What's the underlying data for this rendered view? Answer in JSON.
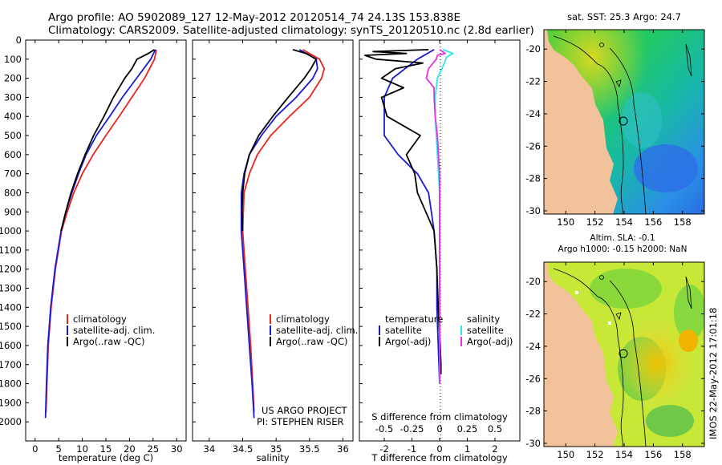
{
  "header": {
    "title_line1": "Argo profile: AO 5902089_127 12-May-2012 20120514_74 24.13S 153.838E",
    "title_line2": "Climatology: CARS2009. Satellite-adjusted climatology: synTS_20120510.nc (2.8d earlier)"
  },
  "footer_vertical": "IMOS 22-May-2012 17:01:18",
  "colors": {
    "red": "#e8261c",
    "blue": "#1a1ad6",
    "black": "#000000",
    "cyan": "#2ee6e6",
    "magenta": "#e62ee6",
    "land": "#f2c39a"
  },
  "chart_data": [
    {
      "id": "temperature",
      "type": "line",
      "xlabel": "temperature (deg C)",
      "ylabel": "",
      "xlim": [
        -2,
        32
      ],
      "ylim": [
        2100,
        0
      ],
      "xticks": [
        0,
        5,
        10,
        15,
        20,
        25,
        30
      ],
      "yticks": [
        0,
        100,
        200,
        300,
        400,
        500,
        600,
        700,
        800,
        900,
        1000,
        1100,
        1200,
        1300,
        1400,
        1500,
        1600,
        1700,
        1800,
        1900,
        2000
      ],
      "legend": [
        "climatology",
        "satellite-adj. clim.",
        "Argo(..raw -QC)"
      ],
      "series": [
        {
          "name": "climatology",
          "color": "red",
          "depth": [
            50,
            100,
            200,
            300,
            400,
            500,
            600,
            700,
            800,
            900,
            1000,
            1200,
            1400,
            1600,
            1800,
            1950
          ],
          "values": [
            25.7,
            25.3,
            23.2,
            20.5,
            17.8,
            15.0,
            12.3,
            10.0,
            8.2,
            6.8,
            5.6,
            4.3,
            3.4,
            2.8,
            2.5,
            2.3
          ]
        },
        {
          "name": "satellite-adj. clim.",
          "color": "blue",
          "depth": [
            50,
            100,
            200,
            300,
            400,
            500,
            600,
            700,
            800,
            900,
            1000,
            1200,
            1400,
            1600,
            1800,
            1980
          ],
          "values": [
            25.5,
            24.5,
            21.5,
            18.5,
            15.8,
            13.0,
            10.8,
            9.2,
            7.8,
            6.5,
            5.5,
            4.2,
            3.3,
            2.7,
            2.4,
            2.2
          ]
        },
        {
          "name": "Argo(..raw -QC)",
          "color": "black",
          "depth": [
            50,
            70,
            100,
            150,
            200,
            300,
            400,
            500,
            600,
            700,
            800,
            900,
            1000
          ],
          "values": [
            25.3,
            24.0,
            21.6,
            20.5,
            19.0,
            16.6,
            14.6,
            12.4,
            10.6,
            9.0,
            7.6,
            6.5,
            5.5
          ]
        }
      ]
    },
    {
      "id": "salinity",
      "type": "line",
      "xlabel": "salinity",
      "ylabel": "",
      "xlim": [
        33.75,
        36.15
      ],
      "ylim": [
        2100,
        0
      ],
      "xticks": [
        34,
        34.5,
        35,
        35.5,
        36
      ],
      "legend": [
        "climatology",
        "satellite-adj. clim.",
        "Argo(..raw -QC)"
      ],
      "annotation": [
        "US ARGO PROJECT",
        "PI: STEPHEN RISER"
      ],
      "series": [
        {
          "name": "climatology",
          "color": "red",
          "depth": [
            50,
            100,
            150,
            200,
            300,
            400,
            500,
            600,
            700,
            800,
            1000,
            1200,
            1400,
            1600,
            1800,
            1950
          ],
          "values": [
            35.4,
            35.65,
            35.72,
            35.68,
            35.5,
            35.2,
            34.92,
            34.72,
            34.6,
            34.52,
            34.5,
            34.54,
            34.58,
            34.62,
            34.65,
            34.67
          ]
        },
        {
          "name": "satellite-adj. clim.",
          "color": "blue",
          "depth": [
            50,
            100,
            150,
            200,
            300,
            400,
            500,
            600,
            700,
            800,
            1000,
            1200,
            1400,
            1600,
            1800,
            1980
          ],
          "values": [
            35.35,
            35.6,
            35.62,
            35.55,
            35.3,
            35.0,
            34.78,
            34.6,
            34.52,
            34.48,
            34.48,
            34.52,
            34.56,
            34.6,
            34.64,
            34.67
          ]
        },
        {
          "name": "Argo(..raw -QC)",
          "color": "black",
          "depth": [
            50,
            70,
            100,
            150,
            200,
            300,
            400,
            500,
            600,
            700,
            800,
            900,
            1000
          ],
          "values": [
            35.25,
            35.45,
            35.6,
            35.52,
            35.42,
            35.18,
            34.95,
            34.74,
            34.6,
            34.53,
            34.5,
            34.49,
            34.5
          ]
        }
      ]
    },
    {
      "id": "difference",
      "type": "line",
      "xlabel": "T difference from climatology",
      "xlabel_top": "S difference from climatology",
      "xlim": [
        -2.9,
        2.9
      ],
      "ylim": [
        2100,
        0
      ],
      "xticks": [
        -2,
        -1,
        0,
        1,
        2
      ],
      "xticks_s": [
        -0.5,
        -0.25,
        0,
        0.25,
        0.5
      ],
      "xticks_s_labels": [
        "-0.5",
        "-0.25",
        "0",
        "0.25",
        "0.5"
      ],
      "legend_t_title": "temperature",
      "legend_s_title": "salinity",
      "legend": [
        "satellite",
        "Argo(-adj)",
        "satellite",
        "Argo(-adj)"
      ],
      "series": [
        {
          "name": "T satellite",
          "color": "blue",
          "depth": [
            50,
            100,
            200,
            300,
            400,
            500,
            600,
            700,
            800,
            900,
            1000,
            1200,
            1400,
            1600,
            1800
          ],
          "values": [
            -0.2,
            -0.8,
            -1.7,
            -2.0,
            -2.0,
            -2.0,
            -1.5,
            -0.8,
            -0.4,
            -0.3,
            -0.2,
            -0.1,
            -0.1,
            -0.05,
            0
          ]
        },
        {
          "name": "T Argo(-adj)",
          "color": "black",
          "depth": [
            50,
            60,
            70,
            80,
            100,
            120,
            150,
            200,
            250,
            300,
            400,
            500,
            600,
            700,
            800,
            900,
            1000,
            1200,
            1400,
            1600,
            1700,
            1750
          ],
          "values": [
            -0.4,
            -2.4,
            -1.2,
            -2.7,
            -2.3,
            -0.6,
            -1.6,
            -2.1,
            -1.3,
            -2.1,
            -1.9,
            -0.7,
            -1.2,
            -0.9,
            -0.8,
            -0.5,
            -0.2,
            -0.1,
            -0.05,
            0.02,
            0.05,
            0.05
          ]
        },
        {
          "name": "S satellite",
          "color": "cyan",
          "depth": [
            50,
            70,
            90,
            110,
            150,
            200,
            300,
            400,
            500,
            600,
            700,
            800,
            1000,
            1200,
            1400,
            1600,
            1800
          ],
          "values": [
            0.03,
            0.12,
            0.06,
            0.05,
            0.02,
            -0.02,
            -0.04,
            -0.04,
            -0.03,
            -0.02,
            -0.01,
            0,
            0,
            0,
            0,
            0,
            0
          ]
        },
        {
          "name": "S Argo(-adj)",
          "color": "magenta",
          "depth": [
            50,
            70,
            80,
            100,
            150,
            200,
            250,
            300,
            400,
            500,
            600,
            700,
            800,
            1000,
            1200,
            1400,
            1600,
            1800
          ],
          "values": [
            0.0,
            0.05,
            -0.02,
            -0.03,
            -0.1,
            -0.12,
            -0.05,
            -0.05,
            -0.04,
            -0.02,
            -0.01,
            0,
            0,
            0,
            0,
            0,
            0,
            0
          ]
        }
      ]
    },
    {
      "id": "map_sst",
      "type": "heatmap",
      "title": "sat. SST: 25.3 Argo: 24.7",
      "xticks": [
        150,
        152,
        154,
        156,
        158
      ],
      "yticks": [
        -20,
        -22,
        -24,
        -26,
        -28,
        -30
      ],
      "xlim": [
        148.5,
        159.5
      ],
      "ylim": [
        -30.2,
        -18.8
      ],
      "argo_position": {
        "lon": 153.838,
        "lat": -24.13
      }
    },
    {
      "id": "map_sla",
      "type": "heatmap",
      "title_line1": "Altim. SLA: -0.1",
      "title_line2": "Argo h1000: -0.15 h2000: NaN",
      "xticks": [
        150,
        152,
        154,
        156,
        158
      ],
      "yticks": [
        -20,
        -22,
        -24,
        -26,
        -28,
        -30
      ],
      "xlim": [
        148.5,
        159.5
      ],
      "ylim": [
        -30.2,
        -18.8
      ],
      "argo_position": {
        "lon": 153.838,
        "lat": -24.13
      }
    }
  ]
}
